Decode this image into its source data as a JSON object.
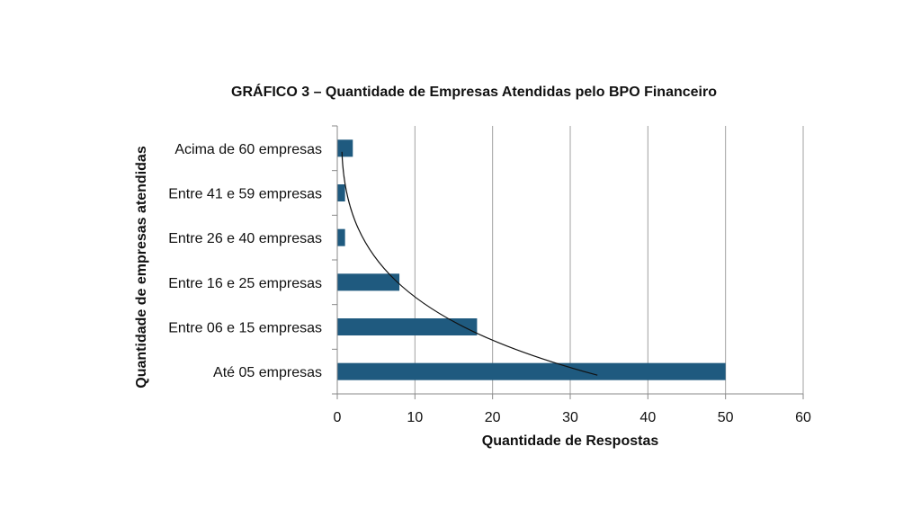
{
  "chart_data": {
    "type": "bar",
    "orientation": "horizontal",
    "title": "GRÁFICO 3 – Quantidade de Empresas Atendidas pelo BPO Financeiro",
    "xlabel": "Quantidade de Respostas",
    "ylabel": "Quantidade de empresas atendidas",
    "categories": [
      "Acima de 60 empresas",
      "Entre 41 e 59 empresas",
      "Entre 26 e 40 empresas",
      "Entre 16 e 25 empresas",
      "Entre 06 e 15 empresas",
      "Até 05 empresas"
    ],
    "values": [
      2,
      1,
      1,
      8,
      18,
      50
    ],
    "xlim": [
      0,
      60
    ],
    "xticks": [
      0,
      10,
      20,
      30,
      40,
      50,
      60
    ],
    "grid": "vertical",
    "legend": "none",
    "trendline": "curved",
    "bar_color": "#1f5a7f",
    "grid_color": "#a0a0a0"
  }
}
